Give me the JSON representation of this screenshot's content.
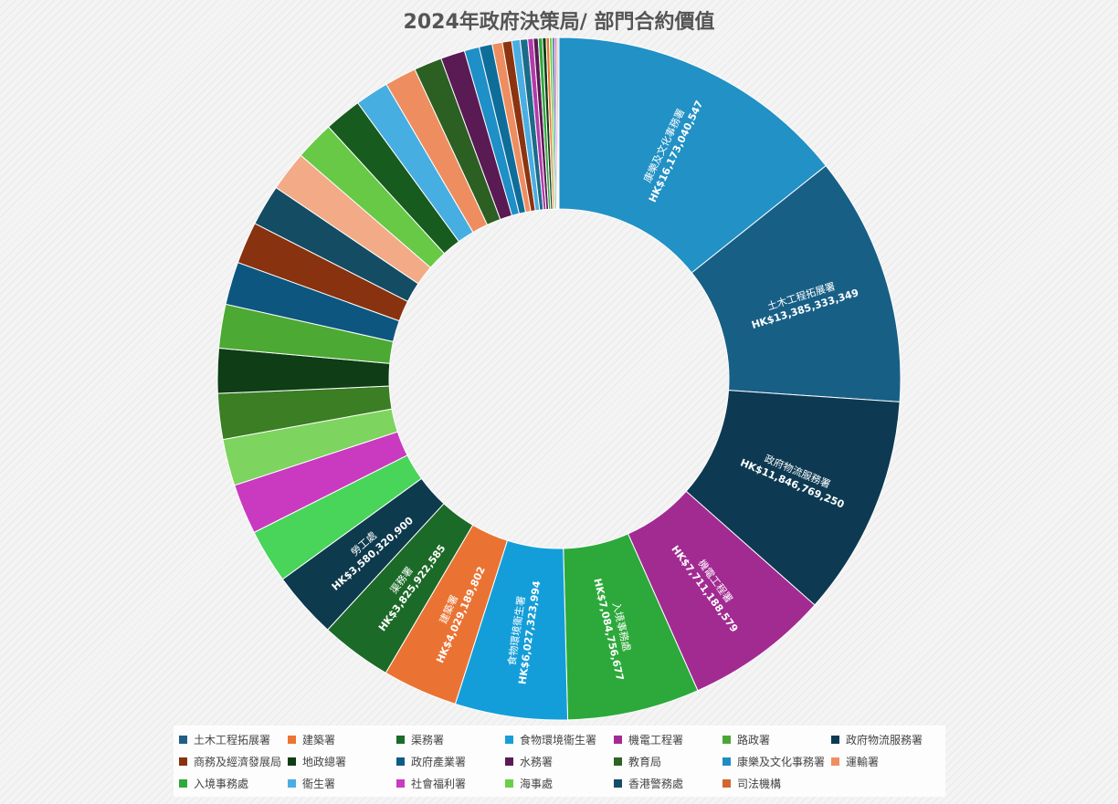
{
  "chart_data": {
    "type": "pie",
    "donut": true,
    "title": "2024年政府決策局/ 部門合約價值",
    "currency_prefix": "HK$",
    "legend_position": "bottom",
    "legend": [
      {
        "name": "土木工程拓展署",
        "color": "#1f5f85"
      },
      {
        "name": "建築署",
        "color": "#ec7532"
      },
      {
        "name": "渠務署",
        "color": "#1b6b2a"
      },
      {
        "name": "食物環境衞生署",
        "color": "#169ed7"
      },
      {
        "name": "機電工程署",
        "color": "#a32a95"
      },
      {
        "name": "路政署",
        "color": "#4aa736"
      },
      {
        "name": "政府物流服務署",
        "color": "#0d3a52"
      },
      {
        "name": "商務及經濟發展局",
        "color": "#88320f"
      },
      {
        "name": "地政總署",
        "color": "#0e3d16"
      },
      {
        "name": "政府產業署",
        "color": "#0f5c82"
      },
      {
        "name": "水務署",
        "color": "#5b1a55"
      },
      {
        "name": "教育局",
        "color": "#2d6323"
      },
      {
        "name": "康樂及文化事務署",
        "color": "#1f8dc4"
      },
      {
        "name": "運輸署",
        "color": "#ef8e61"
      },
      {
        "name": "入境事務處",
        "color": "#2eaa3c"
      },
      {
        "name": "衞生署",
        "color": "#4aaee3"
      },
      {
        "name": "社會福利署",
        "color": "#c83cc0"
      },
      {
        "name": "海事處",
        "color": "#6dce49"
      },
      {
        "name": "香港警務處",
        "color": "#154c66"
      },
      {
        "name": "司法機構",
        "color": "#d2662f"
      }
    ],
    "slices": [
      {
        "name": "康樂及文化事務署",
        "value": 16173040547,
        "label": "HK$16,173,040,547",
        "color": "#2191c6"
      },
      {
        "name": "土木工程拓展署",
        "value": 13385333349,
        "label": "HK$13,385,333,349",
        "color": "#185f86"
      },
      {
        "name": "政府物流服務署",
        "value": 11846769250,
        "label": "HK$11,846,769,250",
        "color": "#0d3a52"
      },
      {
        "name": "機電工程署",
        "value": 7711188579,
        "label": "HK$7,711,188,579",
        "color": "#a22b92"
      },
      {
        "name": "入境事務處",
        "value": 7084756677,
        "label": "HK$7,084,756,677",
        "color": "#2ca93a"
      },
      {
        "name": "食物環境衞生署",
        "value": 6027323994,
        "label": "HK$6,027,323,994",
        "color": "#149ed9"
      },
      {
        "name": "建築署",
        "value": 4029189802,
        "label": "HK$4,029,189,802",
        "color": "#ea7333"
      },
      {
        "name": "渠務署",
        "value": 3825922585,
        "label": "HK$3,825,922,585",
        "color": "#1c6a27"
      },
      {
        "name": "勞工處",
        "value": 3580320900,
        "label": "HK$3,580,320,900",
        "color": "#0e3a4e"
      },
      {
        "value": 2900000000,
        "color": "#49d45a"
      },
      {
        "value": 2700000000,
        "color": "#c93ac0"
      },
      {
        "value": 2500000000,
        "color": "#7dd45f"
      },
      {
        "value": 2450000000,
        "color": "#3b7e23"
      },
      {
        "value": 2400000000,
        "color": "#0e3d16"
      },
      {
        "value": 2350000000,
        "color": "#4ca933"
      },
      {
        "value": 2300000000,
        "color": "#0d5680"
      },
      {
        "value": 2250000000,
        "color": "#88320f"
      },
      {
        "value": 2200000000,
        "color": "#134c63"
      },
      {
        "value": 2150000000,
        "color": "#f2aa87"
      },
      {
        "value": 2100000000,
        "color": "#67c945"
      },
      {
        "value": 2000000000,
        "color": "#175b1f"
      },
      {
        "value": 1800000000,
        "color": "#47aee2"
      },
      {
        "value": 1700000000,
        "color": "#ee8e60"
      },
      {
        "value": 1500000000,
        "color": "#2c5f22"
      },
      {
        "value": 1300000000,
        "color": "#5a1a54"
      },
      {
        "value": 800000000,
        "color": "#1f8fc7"
      },
      {
        "value": 700000000,
        "color": "#0f6d9a"
      },
      {
        "value": 550000000,
        "color": "#ee8d60"
      },
      {
        "value": 500000000,
        "color": "#8c3410"
      },
      {
        "value": 450000000,
        "color": "#4aaee3"
      },
      {
        "value": 400000000,
        "color": "#1a6c89"
      },
      {
        "value": 300000000,
        "color": "#b33aa9"
      },
      {
        "value": 260000000,
        "color": "#5b1a55"
      },
      {
        "value": 220000000,
        "color": "#2eaa3c"
      },
      {
        "value": 200000000,
        "color": "#0e3d16"
      },
      {
        "value": 170000000,
        "color": "#ec7532"
      },
      {
        "value": 150000000,
        "color": "#6dce49"
      },
      {
        "value": 120000000,
        "color": "#1f5f85"
      },
      {
        "value": 100000000,
        "color": "#c83cc0"
      },
      {
        "value": 80000000,
        "color": "#d2662f"
      },
      {
        "value": 60000000,
        "color": "#4aaee3"
      }
    ]
  }
}
